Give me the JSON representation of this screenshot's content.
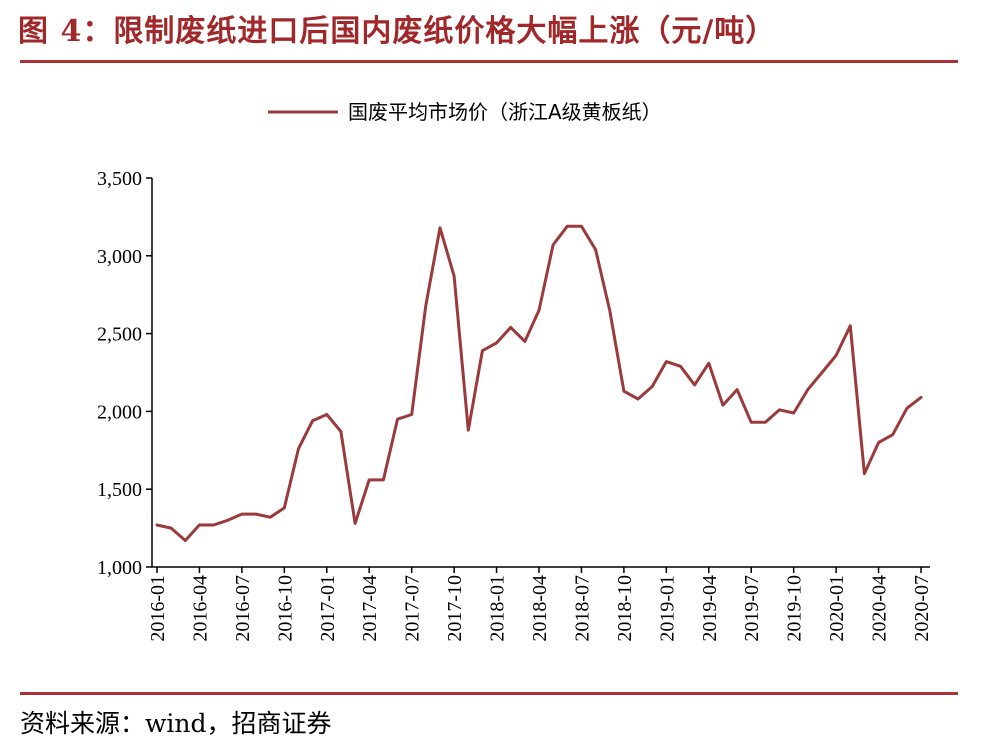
{
  "header": {
    "title": "图 4：限制废纸进口后国内废纸价格大幅上涨（元/吨）"
  },
  "footer": {
    "source": "资料来源：wind，招商证券"
  },
  "colors": {
    "accent": "#a0282a",
    "series": "#9b3a3c"
  },
  "chart_data": {
    "type": "line",
    "title": "",
    "xlabel": "",
    "ylabel": "",
    "ylim": [
      1000,
      3500
    ],
    "yticks": [
      1000,
      1500,
      2000,
      2500,
      3000,
      3500
    ],
    "ytick_labels": [
      "1,000",
      "1,500",
      "2,000",
      "2,500",
      "3,000",
      "3,500"
    ],
    "xtick_labels": [
      "2016-01",
      "2016-04",
      "2016-07",
      "2016-10",
      "2017-01",
      "2017-04",
      "2017-07",
      "2017-10",
      "2018-01",
      "2018-04",
      "2018-07",
      "2018-10",
      "2019-01",
      "2019-04",
      "2019-07",
      "2019-10",
      "2020-01",
      "2020-04",
      "2020-07"
    ],
    "legend_position": "top-center",
    "grid": false,
    "series": [
      {
        "name": "国废平均市场价（浙江A级黄板纸）",
        "color": "#9b3a3c",
        "x": [
          "2016-01",
          "2016-02",
          "2016-03",
          "2016-04",
          "2016-05",
          "2016-06",
          "2016-07",
          "2016-08",
          "2016-09",
          "2016-10",
          "2016-11",
          "2016-12",
          "2017-01",
          "2017-02",
          "2017-03",
          "2017-04",
          "2017-05",
          "2017-06",
          "2017-07",
          "2017-08",
          "2017-09",
          "2017-10",
          "2017-11",
          "2017-12",
          "2018-01",
          "2018-02",
          "2018-03",
          "2018-04",
          "2018-05",
          "2018-06",
          "2018-07",
          "2018-08",
          "2018-09",
          "2018-10",
          "2018-11",
          "2018-12",
          "2019-01",
          "2019-02",
          "2019-03",
          "2019-04",
          "2019-05",
          "2019-06",
          "2019-07",
          "2019-08",
          "2019-09",
          "2019-10",
          "2019-11",
          "2019-12",
          "2020-01",
          "2020-02",
          "2020-03",
          "2020-04",
          "2020-05",
          "2020-06",
          "2020-07"
        ],
        "values": [
          1270,
          1250,
          1170,
          1270,
          1270,
          1300,
          1340,
          1340,
          1320,
          1380,
          1760,
          1940,
          1980,
          1870,
          1280,
          1560,
          1560,
          1950,
          1980,
          2680,
          3180,
          2870,
          1880,
          2390,
          2440,
          2540,
          2450,
          2650,
          3070,
          3190,
          3190,
          3040,
          2650,
          2130,
          2080,
          2160,
          2320,
          2290,
          2170,
          2310,
          2040,
          2140,
          1930,
          1930,
          2010,
          1990,
          2140,
          2250,
          2360,
          2550,
          1600,
          1800,
          1850,
          2020,
          2090
        ]
      }
    ]
  }
}
